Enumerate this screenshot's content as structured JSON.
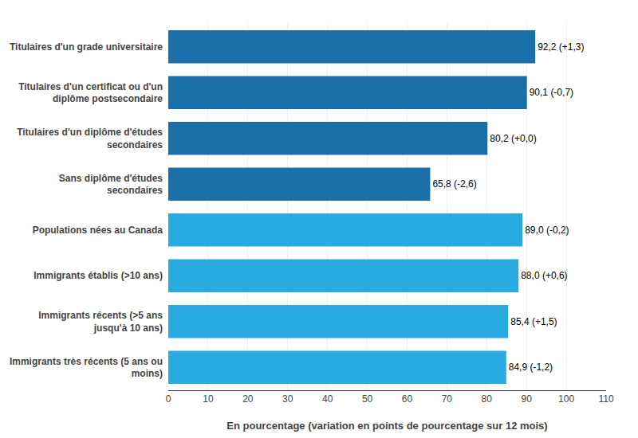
{
  "chart_data": {
    "type": "bar",
    "orientation": "horizontal",
    "categories": [
      "Titulaires d'un grade universitaire",
      "Titulaires d'un certificat ou d'un\ndiplôme postsecondaire",
      "Titulaires d'un diplôme d'études\nsecondaires",
      "Sans diplôme d'études\nsecondaires",
      "Populations nées au Canada",
      "Immigrants établis (>10 ans)",
      "Immigrants récents (>5 ans\njusqu'à 10 ans)",
      "Immigrants très récents (5 ans ou\nmoins)"
    ],
    "values": [
      92.2,
      90.1,
      80.2,
      65.8,
      89.0,
      88.0,
      85.4,
      84.9
    ],
    "value_labels": [
      "92,2 (+1,3)",
      "90,1 (-0,7)",
      "80,2 (+0,0)",
      "65,8 (-2,6)",
      "89,0 (-0,2)",
      "88,0 (+0,6)",
      "85,4 (+1,5)",
      "84,9 (-1,2)"
    ],
    "data_labels": true,
    "colors": [
      "#1a6fa8",
      "#1a6fa8",
      "#1a6fa8",
      "#1a6fa8",
      "#29abe2",
      "#29abe2",
      "#29abe2",
      "#29abe2"
    ],
    "xlabel": "En pourcentage (variation en points de pourcentage sur 12 mois)",
    "xlim": [
      0,
      110
    ],
    "xticks": [
      0,
      10,
      20,
      30,
      40,
      50,
      60,
      70,
      80,
      90,
      100,
      110
    ],
    "grid": true
  }
}
